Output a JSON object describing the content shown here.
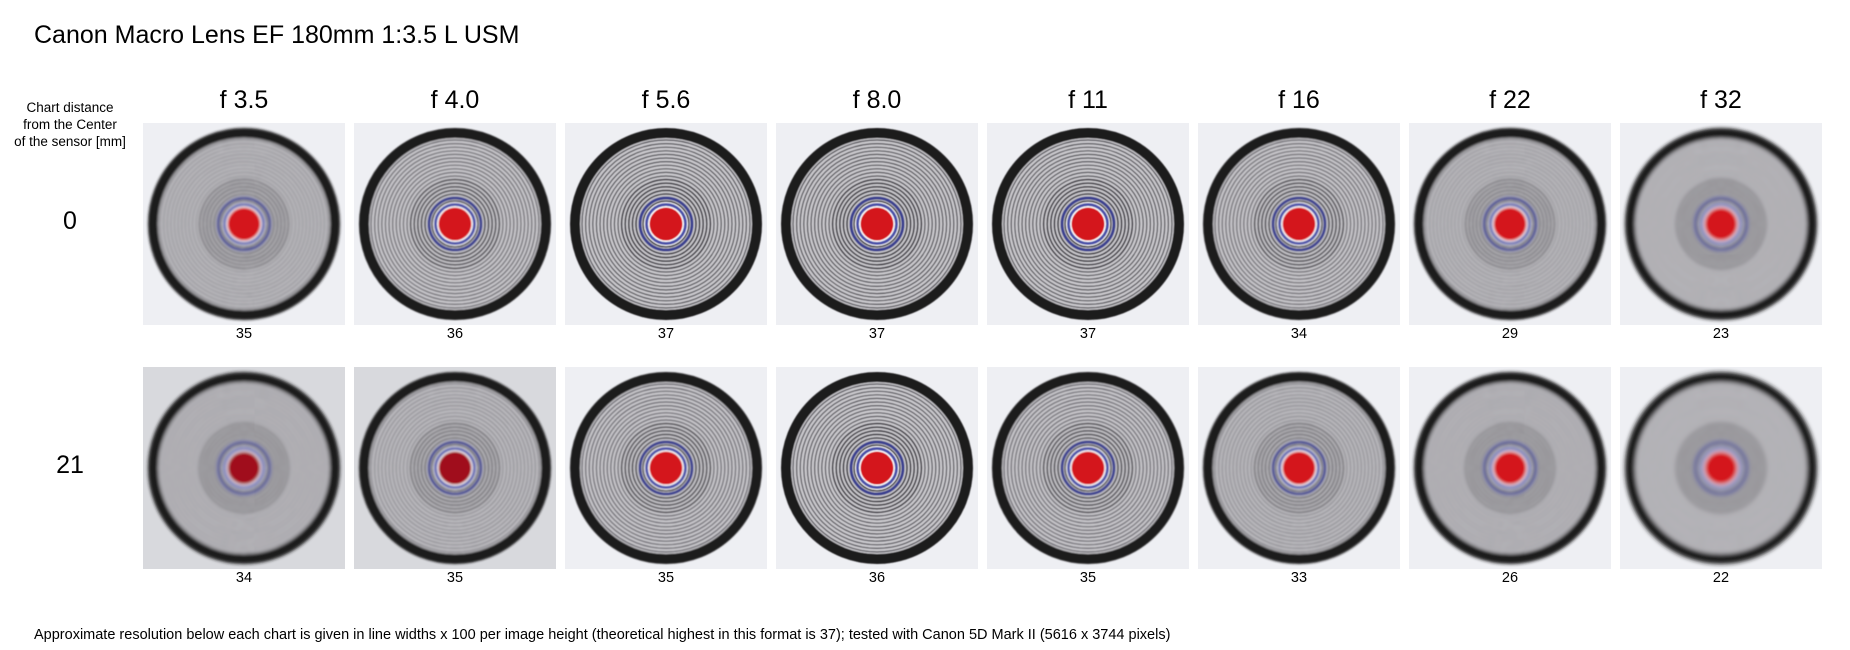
{
  "title": "Canon Macro Lens EF 180mm 1:3.5 L USM",
  "row_header_lines": [
    "Chart distance",
    "from the Center",
    "of the sensor [mm]"
  ],
  "apertures": [
    "f 3.5",
    "f 4.0",
    "f 5.6",
    "f 8.0",
    "f 11",
    "f 16",
    "f 22",
    "f 32"
  ],
  "rows": [
    {
      "distance": "0",
      "resolutions": [
        "35",
        "36",
        "37",
        "37",
        "37",
        "34",
        "29",
        "23"
      ]
    },
    {
      "distance": "21",
      "resolutions": [
        "34",
        "35",
        "35",
        "36",
        "35",
        "33",
        "26",
        "22"
      ]
    }
  ],
  "footnote": "Approximate resolution below each chart is given in line widths x 100 per image height (theoretical highest in this format is 37); tested with Canon 5D Mark II (5616 x 3744 pixels)"
}
